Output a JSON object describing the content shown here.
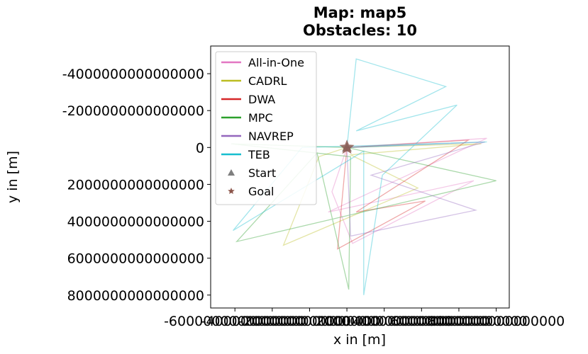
{
  "chart_data": {
    "type": "line",
    "title": "Map: map5\nObstacles: 10",
    "x_label": "x in [m]",
    "y_label": "y in [m]",
    "xlim": [
      -7300000000000000.0,
      8700000000000000.0
    ],
    "xticks": [
      -6000000000000000.0,
      -4000000000000000.0,
      -2000000000000000.0,
      0,
      2000000000000000.0,
      4000000000000000.0,
      6000000000000000.0,
      8000000000000000.0
    ],
    "ylim": [
      -5500000000000000.0,
      8700000000000000.0
    ],
    "y_inverted": true,
    "yticks": [
      -4000000000000000.0,
      -2000000000000000.0,
      0,
      2000000000000000.0,
      4000000000000000.0,
      6000000000000000.0,
      8000000000000000.0
    ],
    "legend": "upper left",
    "series": [
      {
        "name": "All-in-One",
        "color": "#e377c2",
        "x": [
          0,
          7500000000000000.0,
          -1000000000000000.0,
          6800000000000000.0,
          300000000000000.0,
          -800000000000000.0,
          0
        ],
        "y": [
          0,
          -500000000000000.0,
          3500000000000000.0,
          1800000000000000.0,
          5200000000000000.0,
          2400000000000000.0,
          0
        ]
      },
      {
        "name": "CADRL",
        "color": "#bcbd22",
        "x": [
          0,
          7200000000000000.0,
          200000000000000.0,
          3800000000000000.0,
          -3400000000000000.0,
          -1500000000000000.0,
          0
        ],
        "y": [
          0,
          -200000000000000.0,
          400000000000000.0,
          2200000000000000.0,
          5300000000000000.0,
          500000000000000.0,
          0
        ]
      },
      {
        "name": "DWA",
        "color": "#d62728",
        "x": [
          0,
          6500000000000000.0,
          500000000000000.0,
          4200000000000000.0,
          -500000000000000.0,
          0
        ],
        "y": [
          0,
          -400000000000000.0,
          3500000000000000.0,
          2900000000000000.0,
          5500000000000000.0,
          0
        ]
      },
      {
        "name": "MPC",
        "color": "#2ca02c",
        "x": [
          0,
          8000000000000000.0,
          -5900000000000000.0,
          -1600000000000000.0,
          100000000000000.0,
          200000000000000.0,
          -6200000000000000.0,
          0
        ],
        "y": [
          0,
          1800000000000000.0,
          5100000000000000.0,
          300000000000000.0,
          7700000000000000.0,
          500000000000000.0,
          -200000000000000.0,
          0
        ]
      },
      {
        "name": "NAVREP",
        "color": "#9467bd",
        "x": [
          0,
          7400000000000000.0,
          1300000000000000.0,
          6900000000000000.0,
          200000000000000.0,
          0
        ],
        "y": [
          0,
          -300000000000000.0,
          1500000000000000.0,
          3400000000000000.0,
          4800000000000000.0,
          0
        ]
      },
      {
        "name": "TEB",
        "color": "#17becf",
        "x": [
          0,
          500000000000000.0,
          5300000000000000.0,
          500000000000000.0,
          5900000000000000.0,
          1900000000000000.0,
          900000000000000.0,
          900000000000000.0,
          -6100000000000000.0,
          -2400000000000000.0,
          7500000000000000.0,
          0
        ],
        "y": [
          0,
          -4800000000000000.0,
          -3300000000000000.0,
          -900000000000000.0,
          -2300000000000000.0,
          1500000000000000.0,
          8000000000000000.0,
          200000000000000.0,
          4500000000000000.0,
          0,
          -300000000000000.0,
          0
        ]
      }
    ],
    "markers": [
      {
        "name": "Start",
        "color": "#7f7f7f",
        "marker": "triangle",
        "x": [
          0
        ],
        "y": [
          0
        ]
      },
      {
        "name": "Goal",
        "color": "#8c564b",
        "marker": "star",
        "x": [
          0
        ],
        "y": [
          0
        ]
      }
    ]
  }
}
